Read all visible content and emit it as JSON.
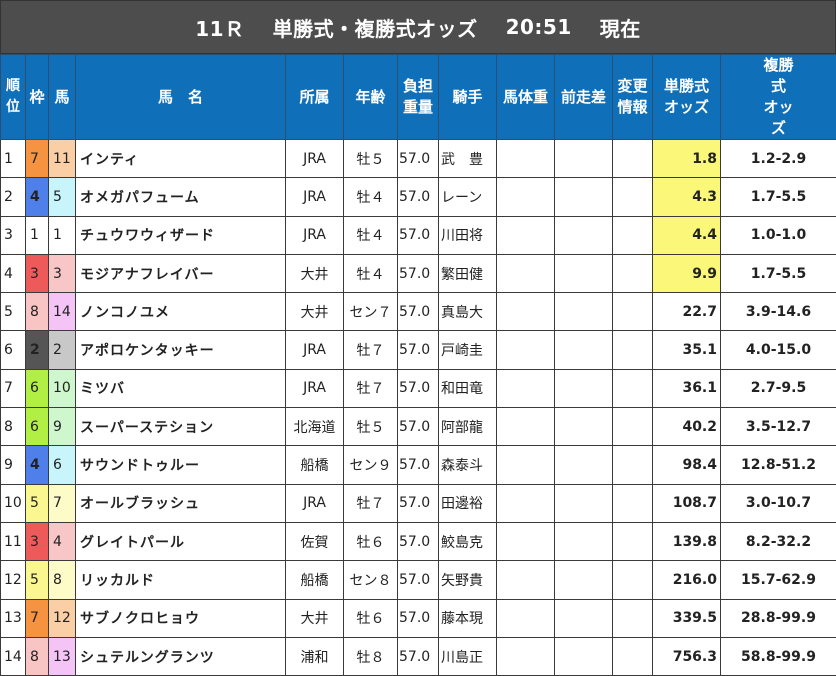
{
  "title": {
    "race": "11Ｒ",
    "label": "単勝式・複勝式オッズ",
    "time": "20:51",
    "status": "現在"
  },
  "headers": {
    "rank": "順位",
    "waku": "枠",
    "uma": "馬",
    "name": "馬　名",
    "affiliation": "所属",
    "age": "年齢",
    "weight": "負担重量",
    "jockey": "騎手",
    "body_weight": "馬体重",
    "diff": "前走差",
    "change": "変更情報",
    "win_odds": "単勝式オッズ",
    "place_odds": "複勝式オッズ"
  },
  "colors": {
    "title_bg": "#4d4d4d",
    "header_bg": "#0f6fb8",
    "win_highlight": "#fbf779"
  },
  "rows": [
    {
      "rank": "1",
      "waku": "7",
      "uma": "11",
      "name": "インティ",
      "affiliation": "JRA",
      "age": "牡５",
      "weight": "57.0",
      "jockey": "武　豊",
      "body_weight": "",
      "diff": "",
      "change": "",
      "win": "1.8",
      "place": "1.2-2.9",
      "hl": true
    },
    {
      "rank": "2",
      "waku": "4",
      "uma": "5",
      "name": "オメガパフューム",
      "affiliation": "JRA",
      "age": "牡４",
      "weight": "57.0",
      "jockey": "レーン",
      "body_weight": "",
      "diff": "",
      "change": "",
      "win": "4.3",
      "place": "1.7-5.5",
      "hl": true
    },
    {
      "rank": "3",
      "waku": "1",
      "uma": "1",
      "name": "チュウワウィザード",
      "affiliation": "JRA",
      "age": "牡４",
      "weight": "57.0",
      "jockey": "川田将",
      "body_weight": "",
      "diff": "",
      "change": "",
      "win": "4.4",
      "place": "1.0-1.0",
      "hl": true
    },
    {
      "rank": "4",
      "waku": "3",
      "uma": "3",
      "name": "モジアナフレイバー",
      "affiliation": "大井",
      "age": "牡４",
      "weight": "57.0",
      "jockey": "繁田健",
      "body_weight": "",
      "diff": "",
      "change": "",
      "win": "9.9",
      "place": "1.7-5.5",
      "hl": true
    },
    {
      "rank": "5",
      "waku": "8",
      "uma": "14",
      "name": "ノンコノユメ",
      "affiliation": "大井",
      "age": "セン７",
      "weight": "57.0",
      "jockey": "真島大",
      "body_weight": "",
      "diff": "",
      "change": "",
      "win": "22.7",
      "place": "3.9-14.6",
      "hl": false
    },
    {
      "rank": "6",
      "waku": "2",
      "uma": "2",
      "name": "アポロケンタッキー",
      "affiliation": "JRA",
      "age": "牡７",
      "weight": "57.0",
      "jockey": "戸崎圭",
      "body_weight": "",
      "diff": "",
      "change": "",
      "win": "35.1",
      "place": "4.0-15.0",
      "hl": false
    },
    {
      "rank": "7",
      "waku": "6",
      "uma": "10",
      "name": "ミツバ",
      "affiliation": "JRA",
      "age": "牡７",
      "weight": "57.0",
      "jockey": "和田竜",
      "body_weight": "",
      "diff": "",
      "change": "",
      "win": "36.1",
      "place": "2.7-9.5",
      "hl": false
    },
    {
      "rank": "8",
      "waku": "6",
      "uma": "9",
      "name": "スーパーステション",
      "affiliation": "北海道",
      "age": "牡５",
      "weight": "57.0",
      "jockey": "阿部龍",
      "body_weight": "",
      "diff": "",
      "change": "",
      "win": "40.2",
      "place": "3.5-12.7",
      "hl": false
    },
    {
      "rank": "9",
      "waku": "4",
      "uma": "6",
      "name": "サウンドトゥルー",
      "affiliation": "船橋",
      "age": "セン９",
      "weight": "57.0",
      "jockey": "森泰斗",
      "body_weight": "",
      "diff": "",
      "change": "",
      "win": "98.4",
      "place": "12.8-51.2",
      "hl": false
    },
    {
      "rank": "10",
      "waku": "5",
      "uma": "7",
      "name": "オールブラッシュ",
      "affiliation": "JRA",
      "age": "牡７",
      "weight": "57.0",
      "jockey": "田邊裕",
      "body_weight": "",
      "diff": "",
      "change": "",
      "win": "108.7",
      "place": "3.0-10.7",
      "hl": false
    },
    {
      "rank": "11",
      "waku": "3",
      "uma": "4",
      "name": "グレイトパール",
      "affiliation": "佐賀",
      "age": "牡６",
      "weight": "57.0",
      "jockey": "鮫島克",
      "body_weight": "",
      "diff": "",
      "change": "",
      "win": "139.8",
      "place": "8.2-32.2",
      "hl": false
    },
    {
      "rank": "12",
      "waku": "5",
      "uma": "8",
      "name": "リッカルド",
      "affiliation": "船橋",
      "age": "セン８",
      "weight": "57.0",
      "jockey": "矢野貴",
      "body_weight": "",
      "diff": "",
      "change": "",
      "win": "216.0",
      "place": "15.7-62.9",
      "hl": false
    },
    {
      "rank": "13",
      "waku": "7",
      "uma": "12",
      "name": "サブノクロヒョウ",
      "affiliation": "大井",
      "age": "牡６",
      "weight": "57.0",
      "jockey": "藤本現",
      "body_weight": "",
      "diff": "",
      "change": "",
      "win": "339.5",
      "place": "28.8-99.9",
      "hl": false
    },
    {
      "rank": "14",
      "waku": "8",
      "uma": "13",
      "name": "シュテルングランツ",
      "affiliation": "浦和",
      "age": "牡８",
      "weight": "57.0",
      "jockey": "川島正",
      "body_weight": "",
      "diff": "",
      "change": "",
      "win": "756.3",
      "place": "58.8-99.9",
      "hl": false
    }
  ]
}
